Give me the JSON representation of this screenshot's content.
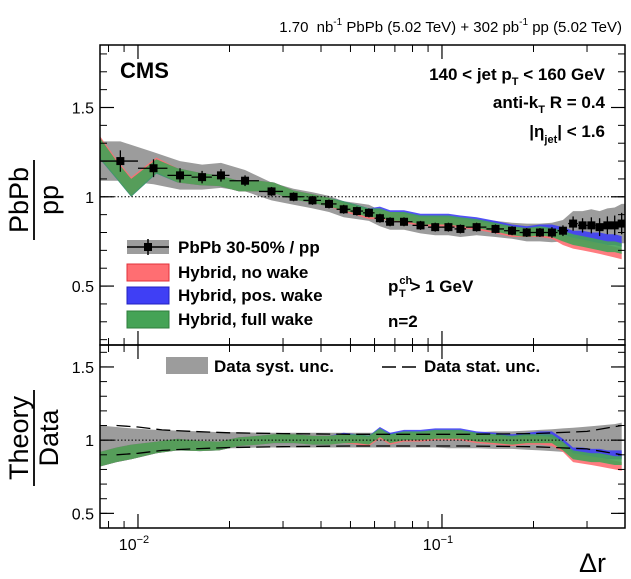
{
  "chart_data": [
    {
      "type": "line",
      "panel": "top",
      "experiment": "CMS",
      "luminosity_label": {
        "pbpb_value": "1.70",
        "pbpb_unit": "nb",
        "pbpb_exp": "-1",
        "pbpb_rest": " PbPb (5.02 TeV) + 302 ",
        "pp_unit": "pb",
        "pp_exp": "-1",
        "pp_rest": " pp (5.02 TeV)"
      },
      "annotations": {
        "jet_pt": {
          "lead": "140 < jet p",
          "sub": "T",
          "tail": " < 160 GeV"
        },
        "algorithm": {
          "lead": "anti-k",
          "sub": "T",
          "tail": " R = 0.4"
        },
        "eta": {
          "lead": "|η",
          "sub": "jet",
          "tail": "| < 1.6"
        },
        "track_pt": {
          "lead": "p",
          "sup": "ch",
          "sub": "T",
          "tail": " > 1 GeV"
        },
        "n": "n=2"
      },
      "ylabel": {
        "num": "PbPb",
        "den": "pp"
      },
      "ylim": [
        0.17,
        1.85
      ],
      "yticks": [
        0.5,
        1,
        1.5
      ],
      "ytick_labels": [
        "0.5",
        "1",
        "1.5"
      ],
      "reference_line": 1,
      "legend": [
        {
          "key": "data",
          "label": "PbPb 30-50% / pp"
        },
        {
          "key": "no_wake",
          "label": "Hybrid, no wake"
        },
        {
          "key": "pos_wake",
          "label": "Hybrid, pos. wake"
        },
        {
          "key": "full_wake",
          "label": "Hybrid, full wake"
        }
      ],
      "colors": {
        "no_wake": "#ff6e72",
        "pos_wake": "#3f3ff5",
        "full_wake": "#45a356",
        "syst": "#9c9c9c",
        "data": "#000000"
      },
      "x": [
        0.0075,
        0.0085,
        0.0095,
        0.0115,
        0.0135,
        0.016,
        0.0185,
        0.0215,
        0.025,
        0.028,
        0.0325,
        0.0375,
        0.0425,
        0.0475,
        0.0525,
        0.0575,
        0.0625,
        0.0675,
        0.075,
        0.085,
        0.095,
        0.105,
        0.115,
        0.13,
        0.15,
        0.17,
        0.19,
        0.21,
        0.23,
        0.25,
        0.27,
        0.29,
        0.31,
        0.33,
        0.35,
        0.37,
        0.39
      ],
      "series": [
        {
          "name": "Hybrid, no wake",
          "key": "no_wake",
          "values": [
            1.28,
            1.16,
            1.06,
            1.18,
            1.12,
            1.1,
            1.09,
            1.06,
            1.06,
            1.05,
            1.01,
            0.99,
            0.97,
            0.94,
            0.92,
            0.9,
            0.9,
            0.89,
            0.88,
            0.86,
            0.86,
            0.86,
            0.85,
            0.84,
            0.82,
            0.8,
            0.8,
            0.8,
            0.79,
            0.76,
            0.74,
            0.73,
            0.72,
            0.71,
            0.7,
            0.69,
            0.68
          ],
          "halfwidth": [
            0.06,
            0.05,
            0.05,
            0.04,
            0.04,
            0.035,
            0.03,
            0.03,
            0.03,
            0.03,
            0.025,
            0.025,
            0.025,
            0.025,
            0.025,
            0.025,
            0.025,
            0.025,
            0.025,
            0.025,
            0.025,
            0.025,
            0.025,
            0.025,
            0.025,
            0.025,
            0.025,
            0.025,
            0.025,
            0.03,
            0.03,
            0.03,
            0.03,
            0.03,
            0.03,
            0.03,
            0.03
          ]
        },
        {
          "name": "Hybrid, pos. wake",
          "key": "pos_wake",
          "values": [
            1.27,
            1.15,
            1.05,
            1.17,
            1.12,
            1.1,
            1.09,
            1.06,
            1.06,
            1.05,
            1.01,
            0.99,
            0.97,
            0.95,
            0.93,
            0.91,
            0.92,
            0.9,
            0.9,
            0.88,
            0.88,
            0.88,
            0.87,
            0.86,
            0.84,
            0.82,
            0.81,
            0.82,
            0.82,
            0.8,
            0.78,
            0.78,
            0.77,
            0.77,
            0.76,
            0.76,
            0.75
          ],
          "halfwidth": [
            0.06,
            0.05,
            0.05,
            0.04,
            0.04,
            0.035,
            0.03,
            0.03,
            0.03,
            0.03,
            0.025,
            0.025,
            0.025,
            0.025,
            0.025,
            0.025,
            0.025,
            0.025,
            0.025,
            0.025,
            0.025,
            0.025,
            0.025,
            0.025,
            0.025,
            0.025,
            0.025,
            0.025,
            0.025,
            0.03,
            0.03,
            0.03,
            0.03,
            0.03,
            0.03,
            0.03,
            0.03
          ]
        },
        {
          "name": "Hybrid, full wake",
          "key": "full_wake",
          "values": [
            1.27,
            1.15,
            1.05,
            1.17,
            1.12,
            1.1,
            1.09,
            1.06,
            1.06,
            1.05,
            1.01,
            0.99,
            0.97,
            0.95,
            0.93,
            0.91,
            0.91,
            0.89,
            0.89,
            0.87,
            0.87,
            0.87,
            0.86,
            0.85,
            0.83,
            0.81,
            0.8,
            0.81,
            0.8,
            0.78,
            0.76,
            0.75,
            0.74,
            0.73,
            0.72,
            0.72,
            0.71
          ],
          "halfwidth": [
            0.06,
            0.05,
            0.05,
            0.04,
            0.04,
            0.035,
            0.03,
            0.03,
            0.03,
            0.03,
            0.025,
            0.025,
            0.025,
            0.025,
            0.025,
            0.025,
            0.025,
            0.025,
            0.025,
            0.025,
            0.025,
            0.025,
            0.025,
            0.025,
            0.025,
            0.025,
            0.025,
            0.025,
            0.025,
            0.03,
            0.03,
            0.03,
            0.03,
            0.03,
            0.03,
            0.03,
            0.03
          ]
        }
      ],
      "data": {
        "name": "PbPb 30-50% / pp",
        "x": [
          0.00875,
          0.01125,
          0.01375,
          0.01625,
          0.01875,
          0.0225,
          0.0275,
          0.0325,
          0.0375,
          0.0425,
          0.0475,
          0.0525,
          0.0575,
          0.0625,
          0.0675,
          0.075,
          0.085,
          0.095,
          0.105,
          0.115,
          0.13,
          0.15,
          0.17,
          0.19,
          0.21,
          0.23,
          0.25,
          0.27,
          0.29,
          0.31,
          0.33,
          0.35,
          0.37,
          0.39
        ],
        "xerr": [
          0.00125,
          0.00125,
          0.00125,
          0.00125,
          0.00125,
          0.0025,
          0.0025,
          0.0025,
          0.0025,
          0.0025,
          0.0025,
          0.0025,
          0.0025,
          0.0025,
          0.0025,
          0.005,
          0.005,
          0.005,
          0.005,
          0.005,
          0.01,
          0.01,
          0.01,
          0.01,
          0.01,
          0.01,
          0.01,
          0.01,
          0.01,
          0.01,
          0.01,
          0.01,
          0.01,
          0.01
        ],
        "y": [
          1.2,
          1.16,
          1.12,
          1.11,
          1.12,
          1.09,
          1.03,
          1.0,
          0.98,
          0.96,
          0.93,
          0.92,
          0.91,
          0.88,
          0.86,
          0.86,
          0.84,
          0.83,
          0.83,
          0.82,
          0.83,
          0.82,
          0.81,
          0.8,
          0.8,
          0.8,
          0.81,
          0.85,
          0.84,
          0.84,
          0.83,
          0.84,
          0.84,
          0.85
        ],
        "yerr": [
          0.06,
          0.05,
          0.04,
          0.035,
          0.035,
          0.03,
          0.025,
          0.025,
          0.025,
          0.025,
          0.025,
          0.025,
          0.025,
          0.025,
          0.025,
          0.025,
          0.025,
          0.025,
          0.025,
          0.025,
          0.025,
          0.025,
          0.025,
          0.025,
          0.025,
          0.03,
          0.03,
          0.04,
          0.04,
          0.045,
          0.05,
          0.05,
          0.055,
          0.06
        ],
        "syst": [
          0.11,
          0.09,
          0.08,
          0.07,
          0.07,
          0.06,
          0.05,
          0.045,
          0.045,
          0.045,
          0.045,
          0.045,
          0.045,
          0.045,
          0.045,
          0.045,
          0.045,
          0.045,
          0.045,
          0.045,
          0.045,
          0.045,
          0.045,
          0.05,
          0.05,
          0.055,
          0.06,
          0.07,
          0.08,
          0.09,
          0.09,
          0.095,
          0.1,
          0.11
        ]
      }
    },
    {
      "type": "line",
      "panel": "bottom",
      "ylabel": {
        "num": "Theory",
        "den": "Data"
      },
      "xlabel": "Δr",
      "xscale": "log",
      "xlim": [
        0.0075,
        0.4
      ],
      "xticks_major": [
        0.01,
        0.1
      ],
      "xtick_labels": [
        {
          "base": "10",
          "exp": "−2"
        },
        {
          "base": "10",
          "exp": "−1"
        }
      ],
      "xticks_minor": [
        0.008,
        0.009,
        0.02,
        0.03,
        0.04,
        0.05,
        0.06,
        0.07,
        0.08,
        0.09,
        0.2,
        0.3,
        0.4
      ],
      "ylim": [
        0.4,
        1.65
      ],
      "yticks": [
        0.5,
        1,
        1.5
      ],
      "ytick_labels": [
        "0.5",
        "1",
        "1.5"
      ],
      "reference_line": 1,
      "legend": [
        {
          "key": "syst",
          "label": "Data syst. unc."
        },
        {
          "key": "stat",
          "label": "Data stat. unc."
        }
      ],
      "syst_band": {
        "x": [
          0.0075,
          0.0085,
          0.0095,
          0.0115,
          0.0135,
          0.016,
          0.0185,
          0.0215,
          0.025,
          0.028,
          0.0325,
          0.0375,
          0.0425,
          0.0475,
          0.0525,
          0.0575,
          0.0625,
          0.0675,
          0.075,
          0.085,
          0.095,
          0.105,
          0.115,
          0.13,
          0.15,
          0.17,
          0.19,
          0.21,
          0.23,
          0.25,
          0.27,
          0.29,
          0.31,
          0.33,
          0.35,
          0.37,
          0.39
        ],
        "halfwidth": [
          0.1,
          0.09,
          0.08,
          0.07,
          0.065,
          0.06,
          0.055,
          0.055,
          0.05,
          0.05,
          0.05,
          0.05,
          0.05,
          0.05,
          0.05,
          0.05,
          0.05,
          0.05,
          0.05,
          0.05,
          0.05,
          0.055,
          0.055,
          0.055,
          0.06,
          0.06,
          0.065,
          0.07,
          0.075,
          0.08,
          0.085,
          0.09,
          0.095,
          0.1,
          0.105,
          0.11,
          0.12
        ]
      },
      "stat_band": {
        "x": [
          0.0085,
          0.01,
          0.012,
          0.015,
          0.02,
          0.03,
          0.05,
          0.08,
          0.12,
          0.2,
          0.3,
          0.39
        ],
        "halfwidth": [
          0.1,
          0.09,
          0.07,
          0.06,
          0.05,
          0.045,
          0.04,
          0.04,
          0.04,
          0.045,
          0.06,
          0.1
        ]
      },
      "series": [
        {
          "name": "Hybrid, no wake",
          "key": "no_wake",
          "values": [
            0.87,
            0.9,
            0.92,
            0.95,
            0.97,
            0.96,
            0.96,
            0.99,
            1.0,
            1.01,
            1.01,
            1.0,
            1.0,
            1.01,
            1.0,
            0.99,
            1.04,
            1.0,
            1.02,
            1.02,
            1.03,
            1.03,
            1.03,
            1.01,
            1.0,
            0.99,
            1.0,
            1.0,
            0.99,
            0.95,
            0.88,
            0.87,
            0.86,
            0.85,
            0.84,
            0.83,
            0.82
          ],
          "halfwidth": [
            0.05,
            0.05,
            0.05,
            0.04,
            0.04,
            0.035,
            0.03,
            0.03,
            0.03,
            0.03,
            0.03,
            0.03,
            0.03,
            0.03,
            0.03,
            0.03,
            0.03,
            0.03,
            0.03,
            0.03,
            0.03,
            0.03,
            0.03,
            0.03,
            0.03,
            0.03,
            0.03,
            0.03,
            0.03,
            0.03,
            0.03,
            0.03,
            0.03,
            0.03,
            0.03,
            0.03,
            0.03
          ]
        },
        {
          "name": "Hybrid, pos. wake",
          "key": "pos_wake",
          "values": [
            0.87,
            0.9,
            0.92,
            0.95,
            0.97,
            0.96,
            0.96,
            0.99,
            1.0,
            1.01,
            1.01,
            1.0,
            1.0,
            1.02,
            1.01,
            1.0,
            1.06,
            1.02,
            1.04,
            1.04,
            1.05,
            1.05,
            1.05,
            1.03,
            1.02,
            1.01,
            1.02,
            1.03,
            1.03,
            0.98,
            0.92,
            0.92,
            0.91,
            0.91,
            0.9,
            0.9,
            0.9
          ],
          "halfwidth": [
            0.05,
            0.05,
            0.05,
            0.04,
            0.04,
            0.035,
            0.03,
            0.03,
            0.03,
            0.03,
            0.03,
            0.03,
            0.03,
            0.03,
            0.03,
            0.03,
            0.03,
            0.03,
            0.03,
            0.03,
            0.03,
            0.03,
            0.03,
            0.03,
            0.03,
            0.03,
            0.03,
            0.03,
            0.03,
            0.03,
            0.03,
            0.03,
            0.03,
            0.03,
            0.03,
            0.03,
            0.03
          ]
        },
        {
          "name": "Hybrid, full wake",
          "key": "full_wake",
          "values": [
            0.87,
            0.9,
            0.92,
            0.95,
            0.97,
            0.96,
            0.96,
            0.99,
            1.0,
            1.01,
            1.01,
            1.0,
            1.0,
            1.01,
            1.01,
            1.0,
            1.05,
            1.01,
            1.03,
            1.03,
            1.04,
            1.04,
            1.04,
            1.02,
            1.01,
            1.0,
            1.01,
            1.01,
            1.01,
            0.96,
            0.9,
            0.89,
            0.88,
            0.88,
            0.87,
            0.86,
            0.86
          ],
          "halfwidth": [
            0.05,
            0.05,
            0.05,
            0.04,
            0.04,
            0.035,
            0.03,
            0.03,
            0.03,
            0.03,
            0.03,
            0.03,
            0.03,
            0.03,
            0.03,
            0.03,
            0.03,
            0.03,
            0.03,
            0.03,
            0.03,
            0.03,
            0.03,
            0.03,
            0.03,
            0.03,
            0.03,
            0.03,
            0.03,
            0.03,
            0.03,
            0.03,
            0.03,
            0.03,
            0.03,
            0.03,
            0.03
          ]
        }
      ]
    }
  ]
}
